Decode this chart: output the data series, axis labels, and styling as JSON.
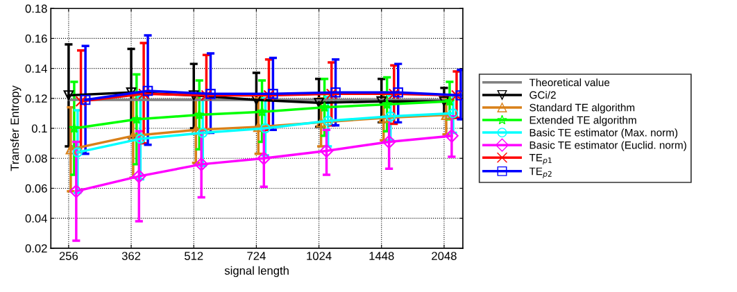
{
  "chart_data": {
    "type": "line",
    "xlabel": "signal length",
    "ylabel": "Transfer Entropy",
    "log": "x",
    "xlim": [
      232,
      2272
    ],
    "xticks": [
      256,
      362,
      512,
      724,
      1024,
      1448,
      2048
    ],
    "ylim": [
      0.02,
      0.18
    ],
    "yticks": [
      0.02,
      0.04,
      0.06,
      {
        "value": 0.08,
        "label": "0.08"
      },
      0.1,
      0.12,
      0.14,
      0.16,
      0.18
    ],
    "grid": true,
    "legend": "right",
    "line_style": "solid",
    "series": [
      {
        "name": "Theoretical value",
        "color": "#808080",
        "marker": "none",
        "x": [
          256,
          362,
          512,
          724,
          1024,
          1448,
          2048
        ],
        "values": [
          0.119,
          0.119,
          0.119,
          0.119,
          0.119,
          0.119,
          0.119
        ]
      },
      {
        "name": "GCi/2",
        "color": "#000000",
        "marker": "triangle_down",
        "x": [
          256,
          362,
          512,
          724,
          1024,
          1448,
          2048
        ],
        "values": [
          0.122,
          0.124,
          0.122,
          0.119,
          0.117,
          0.118,
          0.118
        ],
        "errors": [
          [
            0.088,
            0.156
          ],
          [
            0.094,
            0.153
          ],
          [
            0.1,
            0.143
          ],
          [
            0.1,
            0.137
          ],
          [
            0.101,
            0.133
          ],
          [
            0.104,
            0.133
          ],
          [
            0.109,
            0.127
          ]
        ]
      },
      {
        "name": "Standard TE algorithm",
        "color": "#d98019",
        "marker": "triangle",
        "x": [
          259,
          366,
          518,
          732,
          1036,
          1465,
          2072
        ],
        "values": [
          0.086,
          0.095,
          0.099,
          0.101,
          0.104,
          0.107,
          0.109
        ],
        "errors": [
          [
            0.058,
            0.114
          ],
          [
            0.067,
            0.122
          ],
          [
            0.077,
            0.12
          ],
          [
            0.083,
            0.12
          ],
          [
            0.088,
            0.12
          ],
          [
            0.092,
            0.124
          ],
          [
            0.096,
            0.12
          ]
        ]
      },
      {
        "name": "Extended TE algorithm",
        "color": "#00ff00",
        "marker": "star",
        "x": [
          264,
          373,
          528,
          747,
          1056,
          1493,
          2112
        ],
        "values": [
          0.1,
          0.106,
          0.109,
          0.111,
          0.114,
          0.116,
          0.118
        ],
        "errors": [
          [
            0.069,
            0.131
          ],
          [
            0.076,
            0.136
          ],
          [
            0.086,
            0.132
          ],
          [
            0.091,
            0.132
          ],
          [
            0.095,
            0.133
          ],
          [
            0.098,
            0.134
          ],
          [
            0.106,
            0.131
          ]
        ]
      },
      {
        "name": "Basic TE estimator (Max. norm)",
        "color": "#00ffff",
        "marker": "circle",
        "x": [
          269,
          381,
          538,
          761,
          1077,
          1522,
          2153
        ],
        "values": [
          0.084,
          0.093,
          0.097,
          0.1,
          0.105,
          0.108,
          0.11
        ],
        "errors": [
          [
            0.057,
            0.112
          ],
          [
            0.066,
            0.121
          ],
          [
            0.075,
            0.119
          ],
          [
            0.082,
            0.12
          ],
          [
            0.088,
            0.121
          ],
          [
            0.092,
            0.122
          ],
          [
            0.097,
            0.122
          ]
        ]
      },
      {
        "name": "Basic TE estimator (Euclid. norm)",
        "color": "#ff00ff",
        "marker": "diamond",
        "x": [
          267,
          378,
          534,
          755,
          1068,
          1510,
          2136
        ],
        "values": [
          0.058,
          0.068,
          0.076,
          0.08,
          0.085,
          0.091,
          0.095
        ],
        "errors": [
          [
            0.025,
            0.091
          ],
          [
            0.038,
            0.098
          ],
          [
            0.054,
            0.099
          ],
          [
            0.061,
            0.1
          ],
          [
            0.069,
            0.099
          ],
          [
            0.073,
            0.108
          ],
          [
            0.081,
            0.108
          ]
        ]
      },
      {
        "name": "TE$_{p1}$",
        "color": "#ff0000",
        "marker": "cross",
        "x": [
          274,
          388,
          549,
          776,
          1098,
          1552,
          2195
        ],
        "values": [
          0.118,
          0.123,
          0.122,
          0.122,
          0.123,
          0.123,
          0.122
        ],
        "errors": [
          [
            0.084,
            0.152
          ],
          [
            0.09,
            0.157
          ],
          [
            0.097,
            0.149
          ],
          [
            0.099,
            0.146
          ],
          [
            0.102,
            0.144
          ],
          [
            0.103,
            0.142
          ],
          [
            0.107,
            0.138
          ]
        ]
      },
      {
        "name": "TE$_{p2}$",
        "color": "#0000ff",
        "marker": "square",
        "x": [
          281,
          397,
          562,
          794,
          1123,
          1588,
          2246
        ],
        "values": [
          0.119,
          0.125,
          0.123,
          0.123,
          0.124,
          0.124,
          0.122
        ],
        "errors": [
          [
            0.083,
            0.155
          ],
          [
            0.089,
            0.162
          ],
          [
            0.097,
            0.15
          ],
          [
            0.099,
            0.147
          ],
          [
            0.102,
            0.146
          ],
          [
            0.104,
            0.143
          ],
          [
            0.106,
            0.139
          ]
        ]
      }
    ]
  }
}
